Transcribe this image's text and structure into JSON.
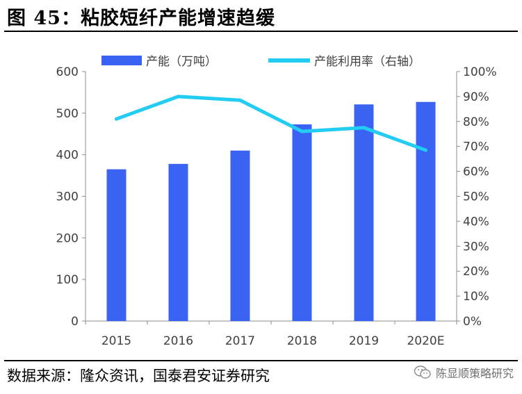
{
  "header": {
    "title": "图 45：粘胶短纤产能增速趋缓"
  },
  "footer": {
    "source": "数据来源：隆众资讯，国泰君安证券研究",
    "watermark": "陈显顺策略研究"
  },
  "colors": {
    "bar": "#3a63f4",
    "line": "#22ccf2",
    "axis": "#8c8c8c",
    "text": "#404040"
  },
  "chart_data": {
    "type": "bar",
    "categories": [
      "2015",
      "2016",
      "2017",
      "2018",
      "2019",
      "2020E"
    ],
    "series": [
      {
        "name": "产能（万吨）",
        "type": "bar",
        "axis": "left",
        "values": [
          365,
          378,
          410,
          473,
          521,
          527
        ]
      },
      {
        "name": "产能利用率（右轴）",
        "type": "line",
        "axis": "right",
        "values": [
          0.81,
          0.9,
          0.885,
          0.76,
          0.775,
          0.685
        ]
      }
    ],
    "ylim": [
      0,
      600
    ],
    "y_ticks": [
      "0",
      "100",
      "200",
      "300",
      "400",
      "500",
      "600"
    ],
    "y2lim": [
      0,
      1
    ],
    "y2_ticks": [
      "0%",
      "10%",
      "20%",
      "30%",
      "40%",
      "50%",
      "60%",
      "70%",
      "80%",
      "90%",
      "100%"
    ],
    "grid": false,
    "legend_position": "top"
  }
}
